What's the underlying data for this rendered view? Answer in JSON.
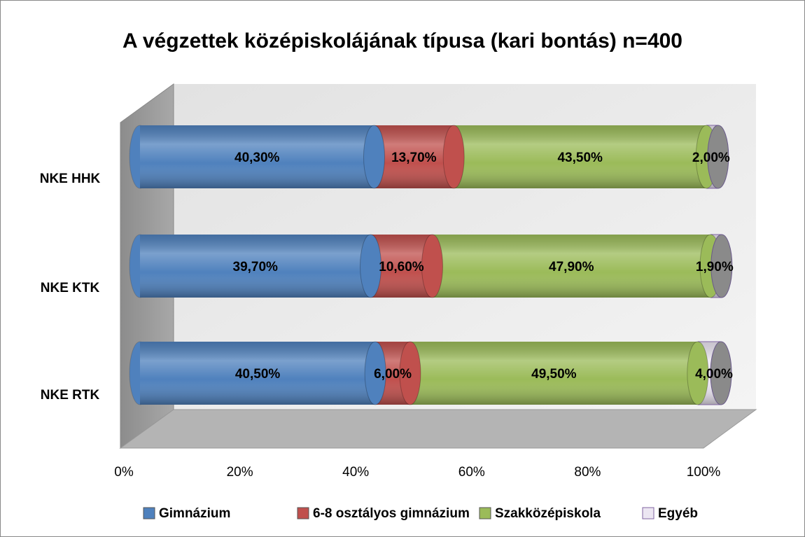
{
  "chart_data": {
    "type": "bar",
    "orientation": "horizontal",
    "stacked": true,
    "title": "A végzettek középiskolájának típusa (kari bontás) n=400",
    "categories": [
      "NKE HHK",
      "NKE KTK",
      "NKE RTK"
    ],
    "series": [
      {
        "name": "Gimnázium",
        "color": "#4f81bd",
        "values": [
          40.3,
          39.7,
          40.5
        ],
        "value_labels": [
          "40,30%",
          "39,70%",
          "40,50%"
        ]
      },
      {
        "name": "6-8 osztályos gimnázium",
        "color": "#c0504d",
        "values": [
          13.7,
          10.6,
          6.0
        ],
        "value_labels": [
          "13,70%",
          "10,60%",
          "6,00%"
        ]
      },
      {
        "name": "Szakközépiskola",
        "color": "#9bbb59",
        "values": [
          43.5,
          47.9,
          49.5
        ],
        "value_labels": [
          "43,50%",
          "47,90%",
          "49,50%"
        ]
      },
      {
        "name": "Egyéb",
        "color": "#ece6f2",
        "values": [
          2.0,
          1.9,
          4.0
        ],
        "value_labels": [
          "2,00%",
          "1,90%",
          "4,00%"
        ]
      }
    ],
    "xlim": [
      0,
      100
    ],
    "xticks": [
      {
        "value": 0,
        "label": "0%"
      },
      {
        "value": 20,
        "label": "20%"
      },
      {
        "value": 40,
        "label": "40%"
      },
      {
        "value": 60,
        "label": "60%"
      },
      {
        "value": 80,
        "label": "80%"
      },
      {
        "value": 100,
        "label": "100%"
      }
    ],
    "grid": false,
    "legend": "bottom"
  }
}
